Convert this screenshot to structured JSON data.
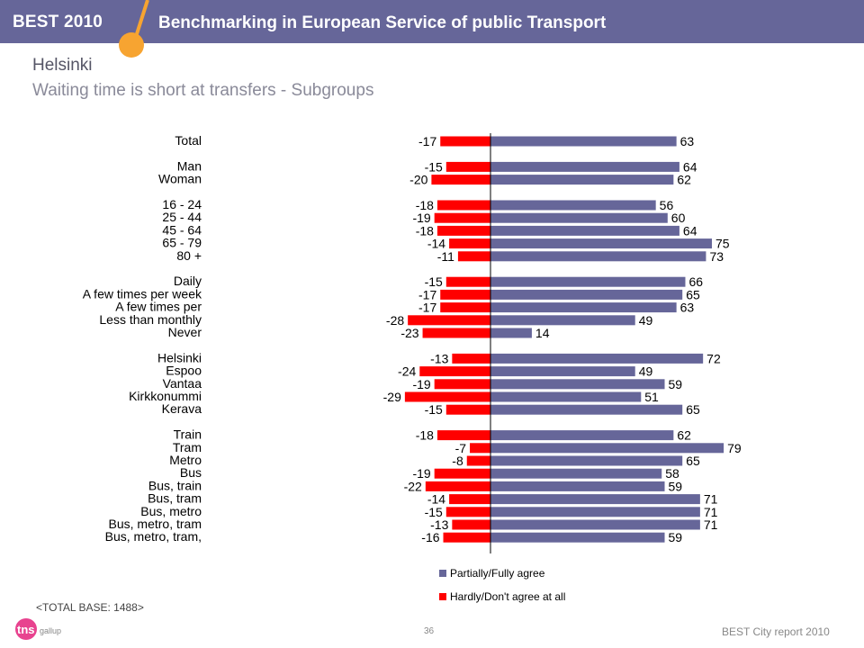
{
  "header": {
    "brand": "BEST 2010",
    "title": "Benchmarking in European Service of public Transport",
    "accent_color": "#f7a431",
    "bar_color": "#666699"
  },
  "slide": {
    "title": "Helsinki",
    "subtitle": "Waiting time is short at transfers - Subgroups"
  },
  "chart_data": {
    "type": "bar",
    "orientation": "horizontal",
    "diverging": true,
    "categories": [
      "Total",
      "Man",
      "Woman",
      "16 - 24",
      "25 - 44",
      "45 - 64",
      "65 - 79",
      "80 +",
      "Daily",
      "A few times per week",
      "A few times per",
      "Less than monthly",
      "Never",
      "Helsinki",
      "Espoo",
      "Vantaa",
      "Kirkkonummi",
      "Kerava",
      "Train",
      "Tram",
      "Metro",
      "Bus",
      "Bus, train",
      "Bus, tram",
      "Bus, metro",
      "Bus, metro, tram",
      "Bus, metro, tram,"
    ],
    "groups": [
      [
        0
      ],
      [
        1,
        2
      ],
      [
        3,
        4,
        5,
        6,
        7
      ],
      [
        8,
        9,
        10,
        11,
        12
      ],
      [
        13,
        14,
        15,
        16,
        17
      ],
      [
        18,
        19,
        20,
        21,
        22,
        23,
        24,
        25,
        26
      ]
    ],
    "series": [
      {
        "name": "Partially/Fully agree",
        "color": "#666699",
        "values": [
          63,
          64,
          62,
          56,
          60,
          64,
          75,
          73,
          66,
          65,
          63,
          49,
          14,
          72,
          49,
          59,
          51,
          65,
          62,
          79,
          65,
          58,
          59,
          71,
          71,
          71,
          59
        ]
      },
      {
        "name": "Hardly/Don't agree at all",
        "color": "#ff0000",
        "values": [
          -17,
          -15,
          -20,
          -18,
          -19,
          -18,
          -14,
          -11,
          -15,
          -17,
          -17,
          -28,
          -23,
          -13,
          -24,
          -19,
          -29,
          -15,
          -18,
          -7,
          -8,
          -19,
          -22,
          -14,
          -15,
          -13,
          -16
        ]
      }
    ],
    "legend_position": "bottom"
  },
  "footer": {
    "base_note": "<TOTAL BASE: 1488>",
    "page_number": "36",
    "report": "BEST City report 2010",
    "logo_text": "tns",
    "logo_sub": "gallup"
  }
}
